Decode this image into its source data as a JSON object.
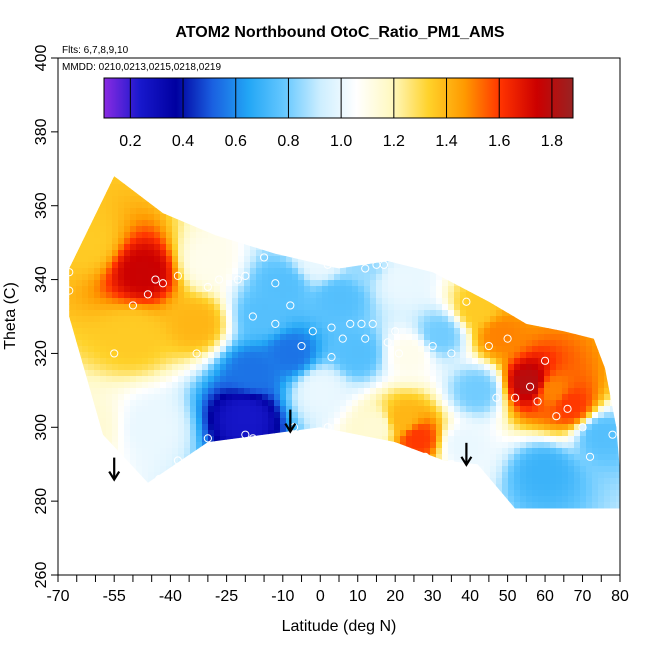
{
  "chart_data": {
    "type": "heatmap",
    "title": "ATOM2 Northbound OtoC_Ratio_PM1_AMS",
    "subtitle_flights": "Flts: 6,7,8,9,10",
    "subtitle_dates": "MMDD: 0210,0213,0215,0218,0219",
    "xlabel": "Latitude (deg N)",
    "ylabel": "Theta (C)",
    "xlim": [
      -70,
      80
    ],
    "ylim": [
      260,
      400
    ],
    "x_tick_labels": [
      "-70",
      "-55",
      "-40",
      "-25",
      "-10",
      "0",
      "10",
      "20",
      "30",
      "40",
      "50",
      "60",
      "70",
      "80"
    ],
    "x_minor_ticks": [
      -70,
      -65,
      -60,
      -55,
      -50,
      -45,
      -40,
      -35,
      -30,
      -25,
      -20,
      -15,
      -10,
      -5,
      0,
      5,
      10,
      15,
      20,
      25,
      30,
      35,
      40,
      45,
      50,
      55,
      60,
      65,
      70,
      75,
      80
    ],
    "y_ticks": [
      260,
      280,
      300,
      320,
      340,
      360,
      380,
      400
    ],
    "colorbar": {
      "range": [
        0.1,
        1.88
      ],
      "tick_values": [
        0.2,
        0.4,
        0.6,
        0.8,
        1.0,
        1.2,
        1.4,
        1.6,
        1.8
      ],
      "tick_labels": [
        "0.2",
        "0.4",
        "0.6",
        "0.8",
        "1.0",
        "1.2",
        "1.4",
        "1.6",
        "1.8"
      ],
      "colors": [
        "#8a2be2",
        "#1818cc",
        "#0000a0",
        "#1a5fe0",
        "#22a6f5",
        "#66c8ff",
        "#cdeeff",
        "#ffffff",
        "#fff8bf",
        "#ffd22a",
        "#ff9900",
        "#ff3300",
        "#cc0000",
        "#992222"
      ]
    },
    "region_outline": [
      [
        -67,
        343
      ],
      [
        -55,
        368
      ],
      [
        -42,
        358
      ],
      [
        -28,
        352
      ],
      [
        -12,
        347
      ],
      [
        5,
        343
      ],
      [
        18,
        345
      ],
      [
        30,
        342
      ],
      [
        45,
        334
      ],
      [
        55,
        328
      ],
      [
        65,
        326
      ],
      [
        73,
        324
      ],
      [
        76,
        316
      ],
      [
        79,
        300
      ],
      [
        80,
        288
      ],
      [
        80,
        278
      ],
      [
        52,
        278
      ],
      [
        42,
        290
      ],
      [
        33,
        291
      ],
      [
        20,
        296
      ],
      [
        0,
        300
      ],
      [
        -30,
        296
      ],
      [
        -46,
        285
      ],
      [
        -58,
        298
      ],
      [
        -67,
        330
      ]
    ],
    "anchor_points": [
      {
        "lat": -62,
        "theta": 350,
        "value": 1.35
      },
      {
        "lat": -47,
        "theta": 342,
        "value": 1.75
      },
      {
        "lat": -50,
        "theta": 325,
        "value": 1.35
      },
      {
        "lat": -33,
        "theta": 328,
        "value": 1.4
      },
      {
        "lat": -30,
        "theta": 345,
        "value": 1.1
      },
      {
        "lat": -62,
        "theta": 300,
        "value": 1.15
      },
      {
        "lat": -45,
        "theta": 300,
        "value": 1.0
      },
      {
        "lat": -20,
        "theta": 303,
        "value": 0.25
      },
      {
        "lat": -18,
        "theta": 315,
        "value": 0.55
      },
      {
        "lat": -15,
        "theta": 330,
        "value": 0.75
      },
      {
        "lat": -8,
        "theta": 320,
        "value": 0.55
      },
      {
        "lat": -10,
        "theta": 338,
        "value": 0.75
      },
      {
        "lat": 0,
        "theta": 310,
        "value": 1.0
      },
      {
        "lat": 5,
        "theta": 335,
        "value": 0.75
      },
      {
        "lat": 12,
        "theta": 345,
        "value": 0.85
      },
      {
        "lat": 10,
        "theta": 320,
        "value": 0.75
      },
      {
        "lat": 15,
        "theta": 300,
        "value": 1.15
      },
      {
        "lat": 22,
        "theta": 302,
        "value": 1.4
      },
      {
        "lat": 26,
        "theta": 297,
        "value": 1.6
      },
      {
        "lat": 24,
        "theta": 320,
        "value": 1.1
      },
      {
        "lat": 32,
        "theta": 325,
        "value": 0.8
      },
      {
        "lat": 42,
        "theta": 332,
        "value": 1.35
      },
      {
        "lat": 48,
        "theta": 325,
        "value": 1.5
      },
      {
        "lat": 56,
        "theta": 312,
        "value": 1.8
      },
      {
        "lat": 62,
        "theta": 310,
        "value": 1.5
      },
      {
        "lat": 67,
        "theta": 306,
        "value": 1.6
      },
      {
        "lat": 42,
        "theta": 310,
        "value": 0.8
      },
      {
        "lat": 60,
        "theta": 288,
        "value": 0.7
      },
      {
        "lat": 75,
        "theta": 298,
        "value": 0.75
      },
      {
        "lat": 38,
        "theta": 295,
        "value": 1.0
      },
      {
        "lat": 22,
        "theta": 340,
        "value": 1.0
      },
      {
        "lat": 0,
        "theta": 345,
        "value": 1.0
      }
    ],
    "sample_points": [
      [
        -67,
        342
      ],
      [
        -67,
        337
      ],
      [
        -50,
        333
      ],
      [
        -46,
        336
      ],
      [
        -44,
        340
      ],
      [
        -42,
        339
      ],
      [
        -38,
        341
      ],
      [
        -30,
        338
      ],
      [
        -27,
        340
      ],
      [
        -22,
        340
      ],
      [
        -20,
        341
      ],
      [
        -15,
        346
      ],
      [
        -12,
        339
      ],
      [
        -8,
        333
      ],
      [
        -18,
        330
      ],
      [
        -12,
        328
      ],
      [
        -5,
        322
      ],
      [
        -2,
        326
      ],
      [
        2,
        344
      ],
      [
        3,
        327
      ],
      [
        8,
        328
      ],
      [
        12,
        343
      ],
      [
        15,
        344
      ],
      [
        17,
        344
      ],
      [
        6,
        324
      ],
      [
        11,
        328
      ],
      [
        12,
        324
      ],
      [
        14,
        328
      ],
      [
        18,
        323
      ],
      [
        21,
        320
      ],
      [
        3,
        319
      ],
      [
        -55,
        320
      ],
      [
        -33,
        320
      ],
      [
        -30,
        297
      ],
      [
        -20,
        298
      ],
      [
        -18,
        297
      ],
      [
        -7,
        300
      ],
      [
        2,
        300
      ],
      [
        17,
        295
      ],
      [
        28,
        292
      ],
      [
        35,
        290
      ],
      [
        47,
        308
      ],
      [
        52,
        308
      ],
      [
        56,
        311
      ],
      [
        58,
        307
      ],
      [
        63,
        303
      ],
      [
        66,
        305
      ],
      [
        70,
        300
      ],
      [
        72,
        292
      ],
      [
        78,
        298
      ],
      [
        60,
        318
      ],
      [
        50,
        324
      ],
      [
        45,
        322
      ],
      [
        39,
        334
      ],
      [
        35,
        320
      ],
      [
        30,
        322
      ],
      [
        20,
        326
      ],
      [
        -43,
        286
      ],
      [
        -38,
        291
      ]
    ],
    "arrows": [
      [
        -55,
        288
      ],
      [
        -8,
        301
      ],
      [
        39,
        292
      ]
    ]
  }
}
